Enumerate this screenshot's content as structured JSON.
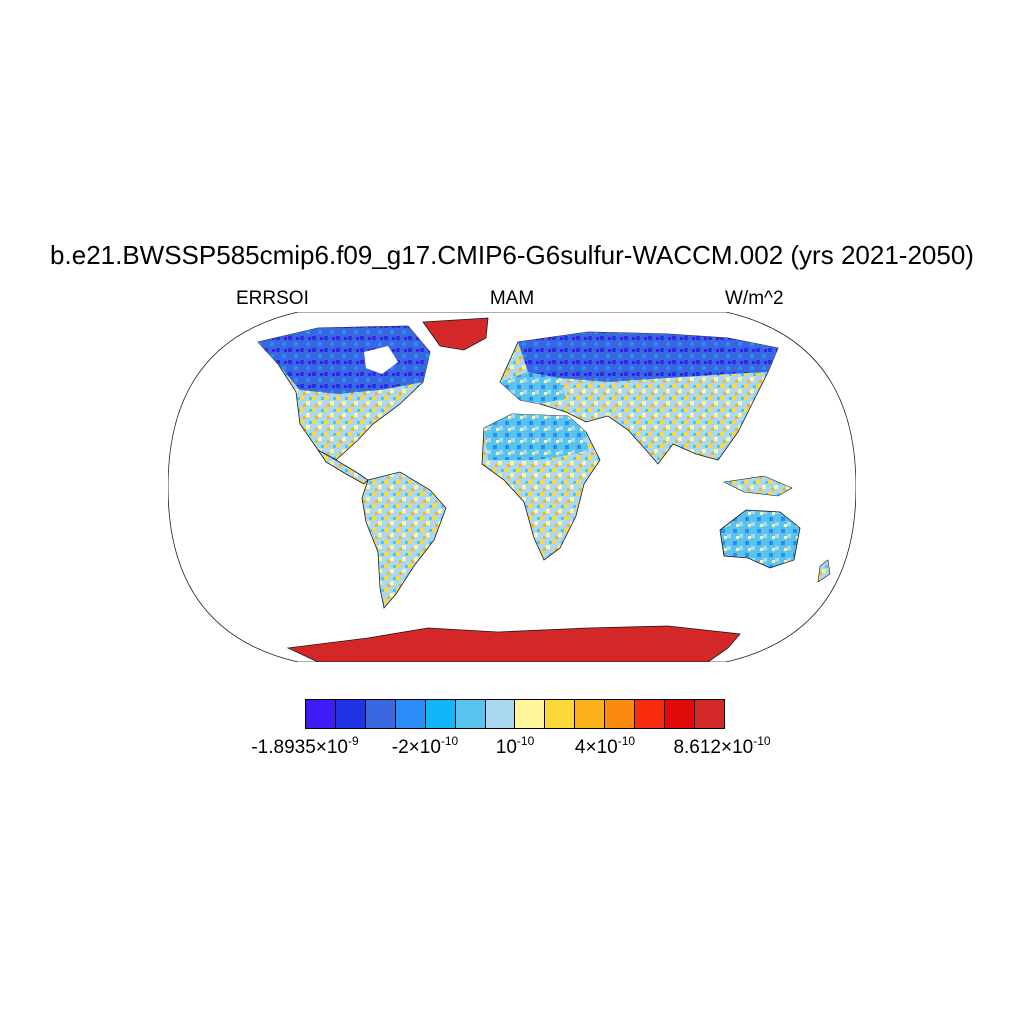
{
  "title": "b.e21.BWSSP585cmip6.f09_g17.CMIP6-G6sulfur-WACCM.002 (yrs 2021-2050)",
  "subtitles": {
    "left": "ERRSOI",
    "center": "MAM",
    "right": "W/m^2"
  },
  "colorbar": {
    "colors": [
      "#3f1cf5",
      "#2233e6",
      "#3a66e0",
      "#2a8cf6",
      "#12b5f8",
      "#58c3ef",
      "#aad8f0",
      "#fff59a",
      "#fcd838",
      "#fbb21a",
      "#f98a0e",
      "#f82c0e",
      "#e00a0a",
      "#d32828"
    ],
    "tick_labels": [
      {
        "mantissa": "-1.8935×10",
        "exponent": "-9"
      },
      {
        "mantissa": "-2×10",
        "exponent": "-10"
      },
      {
        "mantissa": "10",
        "exponent": "-10"
      },
      {
        "mantissa": "4×10",
        "exponent": "-10"
      },
      {
        "mantissa": "8.612×10",
        "exponent": "-10"
      }
    ]
  },
  "colors": {
    "ocean": "#ffffff",
    "coast": "#1a1a1a",
    "antarctica": "#d42828"
  }
}
